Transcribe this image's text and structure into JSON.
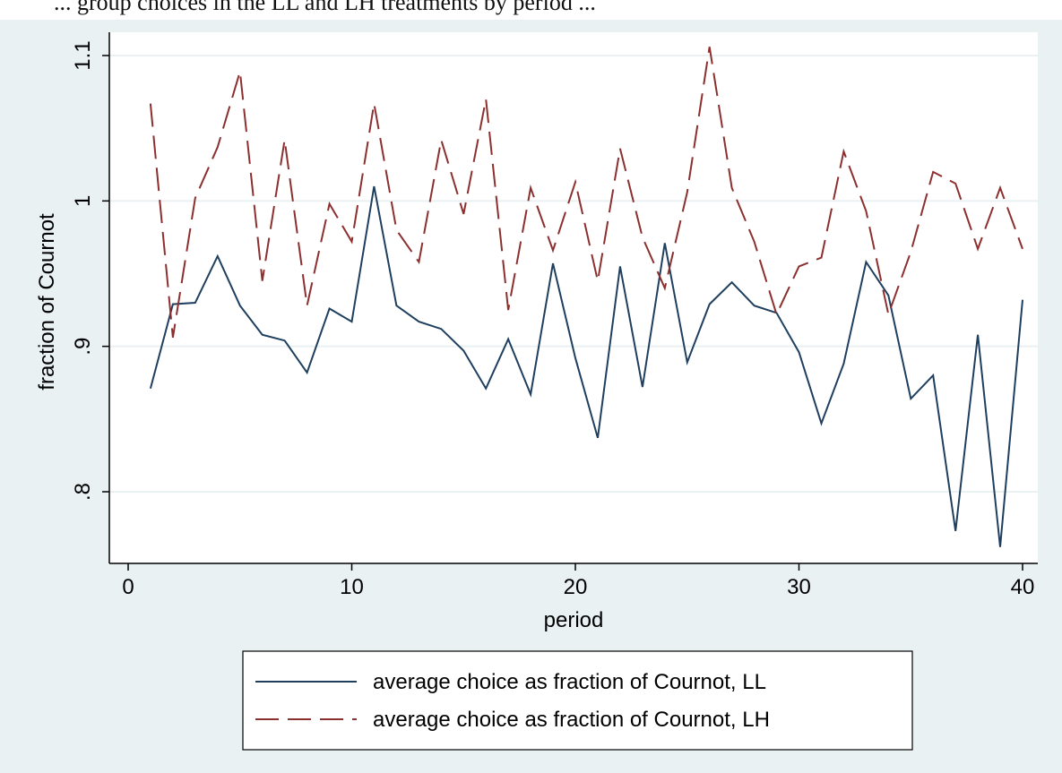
{
  "caption_fragment": "... group choices in the LL and LH treatments by period ...",
  "chart_data": {
    "type": "line",
    "xlabel": "period",
    "ylabel": "fraction of Cournot",
    "xlim": [
      0,
      40
    ],
    "ylim": [
      0.75,
      1.12
    ],
    "x_ticks": [
      0,
      10,
      20,
      30,
      40
    ],
    "x_tick_labels": [
      "0",
      "10",
      "20",
      "30",
      "40"
    ],
    "y_ticks": [
      0.8,
      0.9,
      1.0,
      1.1
    ],
    "y_tick_labels": [
      ".8",
      ".9",
      "1",
      "1.1"
    ],
    "grid": "horizontal",
    "legend_position": "bottom",
    "x": [
      1,
      2,
      3,
      4,
      5,
      6,
      7,
      8,
      9,
      10,
      11,
      12,
      13,
      14,
      15,
      16,
      17,
      18,
      19,
      20,
      21,
      22,
      23,
      24,
      25,
      26,
      27,
      28,
      29,
      30,
      31,
      32,
      33,
      34,
      35,
      36,
      37,
      38,
      39,
      40
    ],
    "series": [
      {
        "name": "average choice as fraction of Cournot, LL",
        "color": "#1f3f5f",
        "dash": "solid",
        "values": [
          0.871,
          0.929,
          0.93,
          0.962,
          0.928,
          0.908,
          0.904,
          0.882,
          0.926,
          0.917,
          1.01,
          0.928,
          0.917,
          0.912,
          0.897,
          0.871,
          0.905,
          0.867,
          0.957,
          0.892,
          0.837,
          0.955,
          0.872,
          0.971,
          0.889,
          0.929,
          0.944,
          0.928,
          0.923,
          0.896,
          0.847,
          0.888,
          0.958,
          0.935,
          0.864,
          0.88,
          0.773,
          0.908,
          0.762,
          0.932
        ]
      },
      {
        "name": "average choice as fraction of Cournot, LH",
        "color": "#8c2f2f",
        "dash": "long-dash",
        "values": [
          1.067,
          0.906,
          1.002,
          1.037,
          1.089,
          0.945,
          1.042,
          0.928,
          0.998,
          0.972,
          1.067,
          0.98,
          0.958,
          1.042,
          0.991,
          1.07,
          0.925,
          1.009,
          0.966,
          1.013,
          0.945,
          1.036,
          0.975,
          0.94,
          1.006,
          1.106,
          1.009,
          0.972,
          0.922,
          0.955,
          0.961,
          1.034,
          0.993,
          0.922,
          0.965,
          1.02,
          1.012,
          0.967,
          1.009,
          0.967
        ]
      }
    ]
  }
}
